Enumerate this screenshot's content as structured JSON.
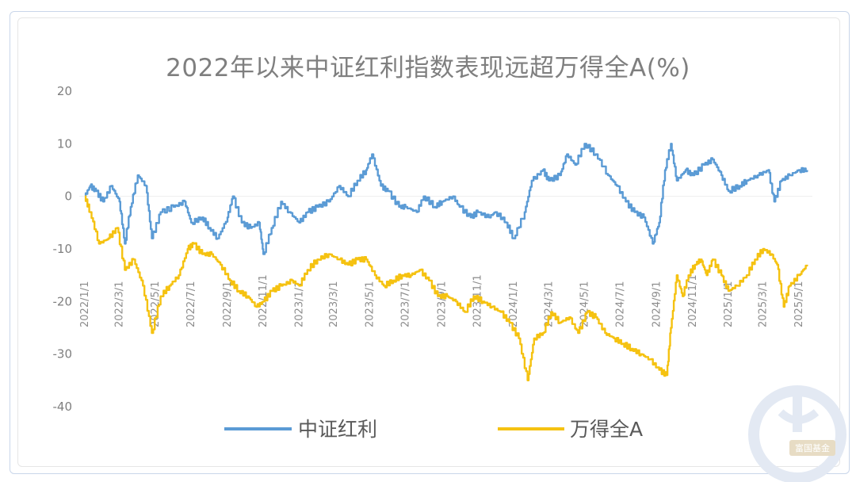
{
  "chart_data": {
    "type": "line",
    "title": "2022年以来中证红利指数表现远超万得全A(%)",
    "ylim": [
      -40,
      20
    ],
    "yticks": [
      "20",
      "10",
      "0",
      "-10",
      "-20",
      "-30",
      "-40"
    ],
    "xticks": [
      "2022/1/1",
      "2022/3/1",
      "2022/5/1",
      "2022/7/1",
      "2022/9/1",
      "2022/11/1",
      "2023/1/1",
      "2023/3/1",
      "2023/5/1",
      "2023/7/1",
      "2023/9/1",
      "2023/11/1",
      "2024/1/1",
      "2024/3/1",
      "2024/5/1",
      "2024/7/1",
      "2024/9/1",
      "2024/11/1",
      "2025/1/1",
      "2025/3/1",
      "2025/5/1"
    ],
    "legend": "bottom",
    "grid": false,
    "series": [
      {
        "name": "中证红利",
        "color": "#5b9bd5",
        "points": [
          [
            "2022/1/1",
            0
          ],
          [
            "2022/1/10",
            2
          ],
          [
            "2022/1/20",
            1
          ],
          [
            "2022/2/1",
            -1
          ],
          [
            "2022/2/15",
            2
          ],
          [
            "2022/3/1",
            -1
          ],
          [
            "2022/3/10",
            -9
          ],
          [
            "2022/3/20",
            -2
          ],
          [
            "2022/4/1",
            4
          ],
          [
            "2022/4/15",
            2
          ],
          [
            "2022/4/25",
            -8
          ],
          [
            "2022/5/10",
            -3
          ],
          [
            "2022/6/1",
            -2
          ],
          [
            "2022/6/20",
            -1
          ],
          [
            "2022/7/1",
            -5
          ],
          [
            "2022/7/20",
            -4
          ],
          [
            "2022/8/1",
            -6
          ],
          [
            "2022/8/15",
            -8
          ],
          [
            "2022/9/1",
            -4
          ],
          [
            "2022/9/10",
            0
          ],
          [
            "2022/9/25",
            -5
          ],
          [
            "2022/10/10",
            -6
          ],
          [
            "2022/10/25",
            -5
          ],
          [
            "2022/11/1",
            -11
          ],
          [
            "2022/11/15",
            -6
          ],
          [
            "2022/12/1",
            -1
          ],
          [
            "2022/12/15",
            -3
          ],
          [
            "2023/1/1",
            -5
          ],
          [
            "2023/1/15",
            -3
          ],
          [
            "2023/2/1",
            -2
          ],
          [
            "2023/2/20",
            -1
          ],
          [
            "2023/3/10",
            2
          ],
          [
            "2023/3/25",
            0
          ],
          [
            "2023/4/10",
            3
          ],
          [
            "2023/4/25",
            5
          ],
          [
            "2023/5/5",
            8
          ],
          [
            "2023/5/20",
            2
          ],
          [
            "2023/6/1",
            1
          ],
          [
            "2023/6/20",
            -2
          ],
          [
            "2023/7/1",
            -2
          ],
          [
            "2023/7/20",
            -3
          ],
          [
            "2023/8/1",
            0
          ],
          [
            "2023/8/20",
            -2
          ],
          [
            "2023/9/1",
            -1
          ],
          [
            "2023/9/20",
            0
          ],
          [
            "2023/10/1",
            -2
          ],
          [
            "2023/10/20",
            -4
          ],
          [
            "2023/11/1",
            -3
          ],
          [
            "2023/11/20",
            -4
          ],
          [
            "2023/12/1",
            -3
          ],
          [
            "2023/12/20",
            -5
          ],
          [
            "2024/1/1",
            -8
          ],
          [
            "2024/1/20",
            -3
          ],
          [
            "2024/2/1",
            3
          ],
          [
            "2024/2/20",
            5
          ],
          [
            "2024/3/1",
            3
          ],
          [
            "2024/3/20",
            4
          ],
          [
            "2024/4/1",
            8
          ],
          [
            "2024/4/15",
            6
          ],
          [
            "2024/5/1",
            10
          ],
          [
            "2024/5/20",
            8
          ],
          [
            "2024/6/10",
            4
          ],
          [
            "2024/6/25",
            2
          ],
          [
            "2024/7/10",
            -1
          ],
          [
            "2024/7/25",
            -3
          ],
          [
            "2024/8/10",
            -4
          ],
          [
            "2024/8/25",
            -9
          ],
          [
            "2024/9/5",
            -5
          ],
          [
            "2024/9/15",
            5
          ],
          [
            "2024/9/25",
            10
          ],
          [
            "2024/10/5",
            3
          ],
          [
            "2024/10/20",
            5
          ],
          [
            "2024/11/1",
            4
          ],
          [
            "2024/11/20",
            6
          ],
          [
            "2024/12/5",
            7
          ],
          [
            "2024/12/20",
            4
          ],
          [
            "2025/1/1",
            1
          ],
          [
            "2025/1/20",
            2
          ],
          [
            "2025/2/1",
            3
          ],
          [
            "2025/2/20",
            4
          ],
          [
            "2025/3/10",
            5
          ],
          [
            "2025/3/20",
            -1
          ],
          [
            "2025/4/1",
            3
          ],
          [
            "2025/4/15",
            4
          ],
          [
            "2025/5/1",
            5
          ],
          [
            "2025/5/15",
            5
          ]
        ]
      },
      {
        "name": "万得全A",
        "color": "#f5c211",
        "points": [
          [
            "2022/1/1",
            0
          ],
          [
            "2022/1/10",
            -3
          ],
          [
            "2022/1/25",
            -9
          ],
          [
            "2022/2/10",
            -8
          ],
          [
            "2022/2/25",
            -6
          ],
          [
            "2022/3/10",
            -14
          ],
          [
            "2022/3/25",
            -12
          ],
          [
            "2022/4/10",
            -17
          ],
          [
            "2022/4/25",
            -26
          ],
          [
            "2022/5/10",
            -19
          ],
          [
            "2022/5/25",
            -17
          ],
          [
            "2022/6/10",
            -15
          ],
          [
            "2022/6/25",
            -10
          ],
          [
            "2022/7/5",
            -9
          ],
          [
            "2022/7/20",
            -11
          ],
          [
            "2022/8/5",
            -11
          ],
          [
            "2022/8/20",
            -13
          ],
          [
            "2022/9/5",
            -16
          ],
          [
            "2022/9/20",
            -18
          ],
          [
            "2022/10/5",
            -19
          ],
          [
            "2022/10/20",
            -21
          ],
          [
            "2022/11/1",
            -20
          ],
          [
            "2022/11/15",
            -18
          ],
          [
            "2022/12/1",
            -17
          ],
          [
            "2022/12/20",
            -16
          ],
          [
            "2023/1/1",
            -17
          ],
          [
            "2023/1/15",
            -14
          ],
          [
            "2023/2/1",
            -12
          ],
          [
            "2023/2/20",
            -11
          ],
          [
            "2023/3/10",
            -12
          ],
          [
            "2023/3/25",
            -13
          ],
          [
            "2023/4/10",
            -12
          ],
          [
            "2023/4/25",
            -12
          ],
          [
            "2023/5/10",
            -15
          ],
          [
            "2023/5/25",
            -17
          ],
          [
            "2023/6/10",
            -16
          ],
          [
            "2023/6/25",
            -15
          ],
          [
            "2023/7/10",
            -15
          ],
          [
            "2023/7/25",
            -14
          ],
          [
            "2023/8/10",
            -16
          ],
          [
            "2023/8/25",
            -19
          ],
          [
            "2023/9/10",
            -19
          ],
          [
            "2023/9/25",
            -20
          ],
          [
            "2023/10/10",
            -22
          ],
          [
            "2023/10/25",
            -19
          ],
          [
            "2023/11/10",
            -20
          ],
          [
            "2023/11/25",
            -21
          ],
          [
            "2023/12/10",
            -22
          ],
          [
            "2023/12/25",
            -24
          ],
          [
            "2024/1/10",
            -27
          ],
          [
            "2024/1/25",
            -35
          ],
          [
            "2024/2/5",
            -27
          ],
          [
            "2024/2/20",
            -26
          ],
          [
            "2024/3/5",
            -22
          ],
          [
            "2024/3/20",
            -24
          ],
          [
            "2024/4/5",
            -23
          ],
          [
            "2024/4/20",
            -26
          ],
          [
            "2024/5/5",
            -22
          ],
          [
            "2024/5/20",
            -23
          ],
          [
            "2024/6/5",
            -26
          ],
          [
            "2024/6/20",
            -27
          ],
          [
            "2024/7/5",
            -28
          ],
          [
            "2024/7/20",
            -29
          ],
          [
            "2024/8/5",
            -30
          ],
          [
            "2024/8/20",
            -31
          ],
          [
            "2024/9/5",
            -33
          ],
          [
            "2024/9/18",
            -34
          ],
          [
            "2024/9/25",
            -25
          ],
          [
            "2024/10/5",
            -15
          ],
          [
            "2024/10/15",
            -19
          ],
          [
            "2024/10/25",
            -15
          ],
          [
            "2024/11/5",
            -13
          ],
          [
            "2024/11/15",
            -12
          ],
          [
            "2024/11/25",
            -15
          ],
          [
            "2024/12/5",
            -12
          ],
          [
            "2024/12/20",
            -15
          ],
          [
            "2025/1/1",
            -18
          ],
          [
            "2025/1/15",
            -17
          ],
          [
            "2025/2/1",
            -15
          ],
          [
            "2025/2/15",
            -12
          ],
          [
            "2025/3/1",
            -10
          ],
          [
            "2025/3/15",
            -11
          ],
          [
            "2025/3/25",
            -13
          ],
          [
            "2025/4/5",
            -21
          ],
          [
            "2025/4/15",
            -17
          ],
          [
            "2025/5/1",
            -15
          ],
          [
            "2025/5/15",
            -13
          ]
        ]
      }
    ]
  },
  "watermark": {
    "text": "富国基金"
  },
  "colors": {
    "axis_text": "#7f7f7f",
    "frame": "#c9d6ea"
  }
}
